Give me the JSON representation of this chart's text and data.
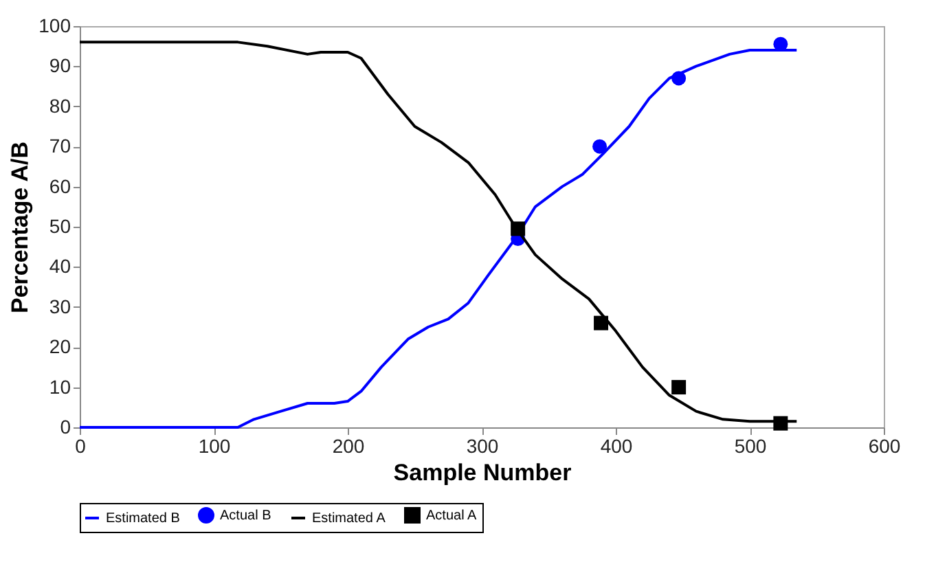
{
  "chart_data": {
    "type": "line",
    "xlabel": "Sample Number",
    "ylabel": "Percentage A/B",
    "xlim": [
      0,
      600
    ],
    "ylim": [
      0,
      100
    ],
    "xticks": [
      0,
      100,
      200,
      300,
      400,
      500,
      600
    ],
    "yticks": [
      0,
      10,
      20,
      30,
      40,
      50,
      60,
      70,
      80,
      90,
      100
    ],
    "grid": false,
    "legend": "bottom",
    "series": [
      {
        "name": "Estimated B",
        "color": "#0000ff",
        "marker": "none",
        "x": [
          0,
          118,
          130,
          150,
          170,
          190,
          200,
          210,
          225,
          245,
          260,
          275,
          290,
          305,
          325,
          340,
          360,
          375,
          390,
          410,
          425,
          440,
          460,
          485,
          500,
          535
        ],
        "values": [
          0,
          0,
          2,
          4,
          6,
          6,
          6.5,
          9,
          15,
          22,
          25,
          27,
          31,
          38,
          47,
          55,
          60,
          63,
          68,
          75,
          82,
          87,
          90,
          93,
          94,
          94
        ]
      },
      {
        "name": "Actual B",
        "type": "scatter",
        "color": "#0000ff",
        "marker": "circle",
        "x": [
          327,
          388,
          447,
          523
        ],
        "values": [
          47,
          70,
          87,
          95.5
        ]
      },
      {
        "name": "Estimated A",
        "color": "#000000",
        "marker": "none",
        "x": [
          0,
          118,
          140,
          170,
          180,
          200,
          210,
          230,
          250,
          270,
          290,
          310,
          325,
          340,
          360,
          380,
          400,
          420,
          440,
          460,
          480,
          500,
          535
        ],
        "values": [
          96,
          96,
          95,
          93,
          93.5,
          93.5,
          92,
          83,
          75,
          71,
          66,
          58,
          50,
          43,
          37,
          32,
          24,
          15,
          8,
          4,
          2,
          1.5,
          1.5
        ]
      },
      {
        "name": "Actual A",
        "type": "scatter",
        "color": "#000000",
        "marker": "square",
        "x": [
          327,
          389,
          447,
          523
        ],
        "values": [
          49.5,
          26,
          10,
          1
        ]
      }
    ]
  }
}
